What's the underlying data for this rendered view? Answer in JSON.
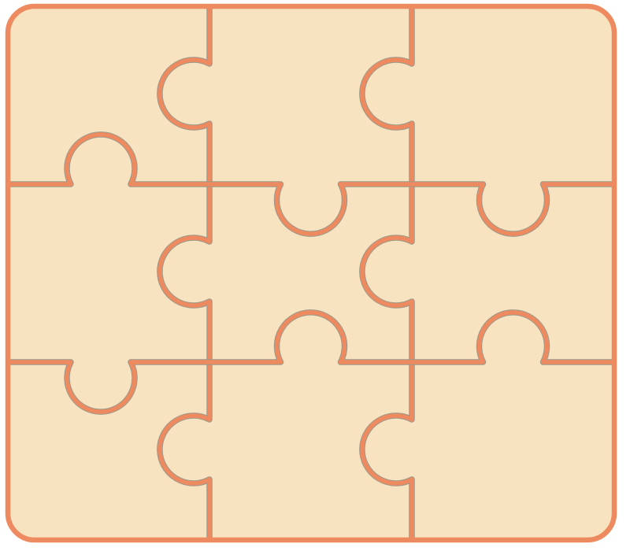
{
  "puzzle": {
    "rows": 3,
    "cols": 3,
    "colors": {
      "fill": "#F7E3C0",
      "outline": "#EE8A5F",
      "edge_shadow": "#9A9A8C"
    },
    "pieces": [
      {
        "row": 0,
        "col": 0
      },
      {
        "row": 0,
        "col": 1
      },
      {
        "row": 0,
        "col": 2
      },
      {
        "row": 1,
        "col": 0
      },
      {
        "row": 1,
        "col": 1
      },
      {
        "row": 1,
        "col": 2
      },
      {
        "row": 2,
        "col": 0
      },
      {
        "row": 2,
        "col": 1
      },
      {
        "row": 2,
        "col": 2
      }
    ],
    "connectors": [
      {
        "name": "v-edge-r0-c01",
        "from": "piece-r0-c0",
        "to": "piece-r0-c1",
        "knob_points_into": "piece-r0-c0"
      },
      {
        "name": "v-edge-r0-c12",
        "from": "piece-r0-c1",
        "to": "piece-r0-c2",
        "knob_points_into": "piece-r0-c1"
      },
      {
        "name": "v-edge-r1-c01",
        "from": "piece-r1-c0",
        "to": "piece-r1-c1",
        "knob_points_into": "piece-r1-c0"
      },
      {
        "name": "v-edge-r1-c12",
        "from": "piece-r1-c1",
        "to": "piece-r1-c2",
        "knob_points_into": "piece-r1-c1"
      },
      {
        "name": "v-edge-r2-c01",
        "from": "piece-r2-c0",
        "to": "piece-r2-c1",
        "knob_points_into": "piece-r2-c0"
      },
      {
        "name": "v-edge-r2-c12",
        "from": "piece-r2-c1",
        "to": "piece-r2-c2",
        "knob_points_into": "piece-r2-c1"
      },
      {
        "name": "h-edge-c0-r01",
        "from": "piece-r0-c0",
        "to": "piece-r1-c0",
        "knob_points_into": "piece-r0-c0"
      },
      {
        "name": "h-edge-c1-r01",
        "from": "piece-r0-c1",
        "to": "piece-r1-c1",
        "knob_points_into": "piece-r1-c1"
      },
      {
        "name": "h-edge-c2-r01",
        "from": "piece-r0-c2",
        "to": "piece-r1-c2",
        "knob_points_into": "piece-r1-c2"
      },
      {
        "name": "h-edge-c0-r12",
        "from": "piece-r1-c0",
        "to": "piece-r2-c0",
        "knob_points_into": "piece-r2-c0"
      },
      {
        "name": "h-edge-c1-r12",
        "from": "piece-r1-c1",
        "to": "piece-r2-c1",
        "knob_points_into": "piece-r1-c1"
      },
      {
        "name": "h-edge-c2-r12",
        "from": "piece-r1-c2",
        "to": "piece-r2-c2",
        "knob_points_into": "piece-r1-c2"
      }
    ]
  }
}
